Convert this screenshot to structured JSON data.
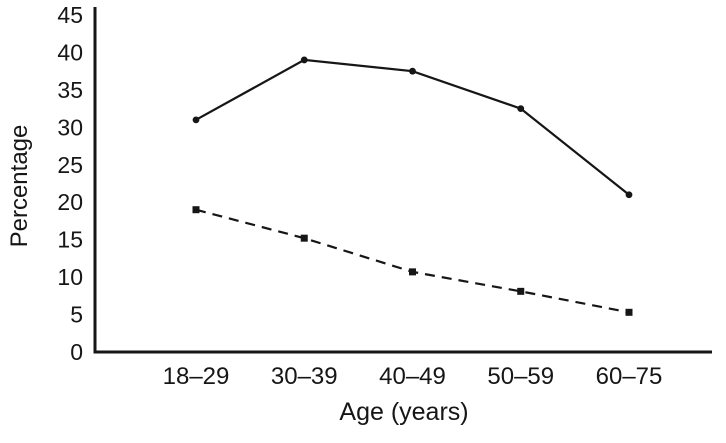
{
  "chart_data": {
    "type": "line",
    "title": "",
    "xlabel": "Age (years)",
    "ylabel": "Percentage",
    "categories": [
      "18–29",
      "30–39",
      "40–49",
      "50–59",
      "60–75"
    ],
    "yticks": [
      0,
      5,
      10,
      15,
      20,
      25,
      30,
      35,
      40,
      45
    ],
    "ylim": [
      0,
      45
    ],
    "grid": false,
    "legend": "none",
    "line_color": "#161616",
    "series": [
      {
        "name": "upper-solid-series",
        "line_style": "solid",
        "marker": "circle",
        "values": [
          31,
          39,
          37.5,
          32.5,
          21
        ]
      },
      {
        "name": "lower-dashed-series",
        "line_style": "dashed",
        "marker": "square",
        "values": [
          19,
          15.2,
          10.7,
          8.1,
          5.3
        ]
      }
    ]
  }
}
